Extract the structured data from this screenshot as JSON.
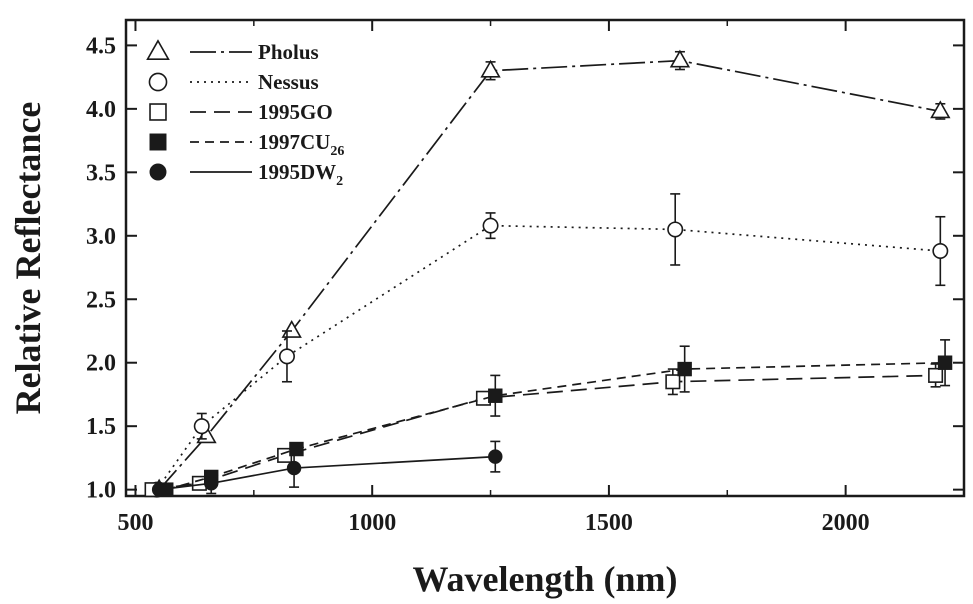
{
  "chart_data": {
    "type": "line",
    "title": "",
    "xlabel": "Wavelength (nm)",
    "ylabel": "Relative Reflectance",
    "xlim": [
      480,
      2250
    ],
    "ylim": [
      0.95,
      4.7
    ],
    "xticks": [
      500,
      1000,
      1500,
      2000
    ],
    "yticks": [
      1.0,
      1.5,
      2.0,
      2.5,
      3.0,
      3.5,
      4.0,
      4.5
    ],
    "ytick_labels": [
      "1.0",
      "1.5",
      "2.0",
      "2.5",
      "3.0",
      "3.5",
      "4.0",
      "4.5"
    ],
    "grid": false,
    "legend_position": "top-left",
    "series": [
      {
        "name": "Pholus",
        "legend_main": "Pholus",
        "legend_sub": "",
        "marker": "triangle-open",
        "line_style": "long-dash",
        "x": [
          550,
          650,
          830,
          1250,
          1650,
          2200
        ],
        "y": [
          1.0,
          1.42,
          2.25,
          4.3,
          4.38,
          3.98
        ],
        "err": [
          0,
          0,
          0,
          0.07,
          0.07,
          0.06
        ]
      },
      {
        "name": "Nessus",
        "legend_main": "Nessus",
        "legend_sub": "",
        "marker": "circle-open",
        "line_style": "dotted",
        "x": [
          545,
          640,
          820,
          1250,
          1640,
          2200
        ],
        "y": [
          1.0,
          1.5,
          2.05,
          3.08,
          3.05,
          2.88
        ],
        "err": [
          0,
          0.1,
          0.2,
          0.1,
          0.28,
          0.27
        ]
      },
      {
        "name": "1995GO",
        "legend_main": "1995GO",
        "legend_sub": "",
        "marker": "square-open",
        "line_style": "dashed",
        "x": [
          535,
          635,
          815,
          1235,
          1635,
          2190
        ],
        "y": [
          1.0,
          1.05,
          1.27,
          1.72,
          1.85,
          1.9
        ],
        "err": [
          0,
          0,
          0,
          0,
          0.1,
          0.09
        ]
      },
      {
        "name": "1997CU26",
        "legend_main": "1997CU",
        "legend_sub": "26",
        "marker": "square-filled",
        "line_style": "short-dash",
        "x": [
          565,
          660,
          840,
          1260,
          1660,
          2210
        ],
        "y": [
          1.0,
          1.1,
          1.32,
          1.74,
          1.95,
          2.0
        ],
        "err": [
          0,
          0,
          0,
          0.16,
          0.18,
          0.18
        ]
      },
      {
        "name": "1995DW2",
        "legend_main": "1995DW",
        "legend_sub": "2",
        "marker": "circle-filled",
        "line_style": "solid",
        "x": [
          550,
          660,
          835,
          1260
        ],
        "y": [
          1.0,
          1.05,
          1.17,
          1.26
        ],
        "err": [
          0,
          0.08,
          0.15,
          0.12
        ]
      }
    ]
  }
}
